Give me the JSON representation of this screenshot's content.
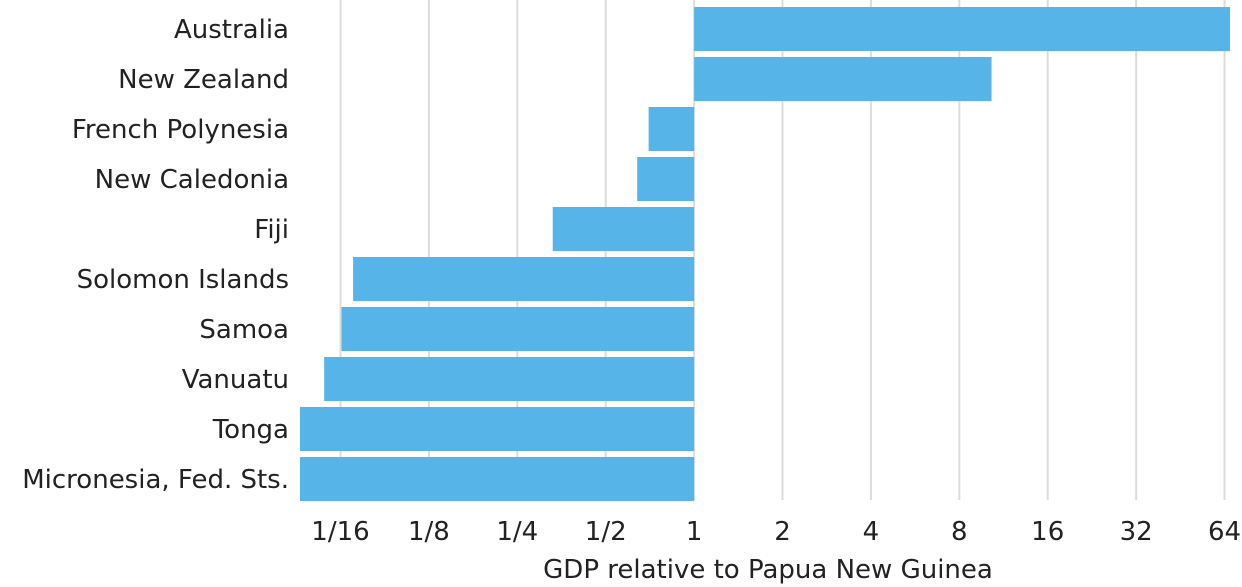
{
  "chart_data": {
    "type": "bar",
    "orientation": "horizontal",
    "categories": [
      "Australia",
      "New Zealand",
      "French Polynesia",
      "New Caledonia",
      "Fiji",
      "Solomon Islands",
      "Samoa",
      "Vanuatu",
      "Tonga",
      "Micronesia, Fed. Sts."
    ],
    "values": [
      66.8,
      10.3,
      0.7,
      0.64,
      0.33,
      0.069,
      0.063,
      0.055,
      0.0455,
      0.0455
    ],
    "baseline": 1,
    "xscale": "log2",
    "xlim": [
      0.0455,
      66.8
    ],
    "xticks": [
      0.0625,
      0.125,
      0.25,
      0.5,
      1,
      2,
      4,
      8,
      16,
      32,
      64
    ],
    "xtick_labels": [
      "1/16",
      "1/8",
      "1/4",
      "1/2",
      "1",
      "2",
      "4",
      "8",
      "16",
      "32",
      "64"
    ],
    "xlabel": "GDP relative to Papua New Guinea",
    "ylabel": "",
    "title": "",
    "grid": "vertical",
    "bar_color": "#56b4e9"
  }
}
